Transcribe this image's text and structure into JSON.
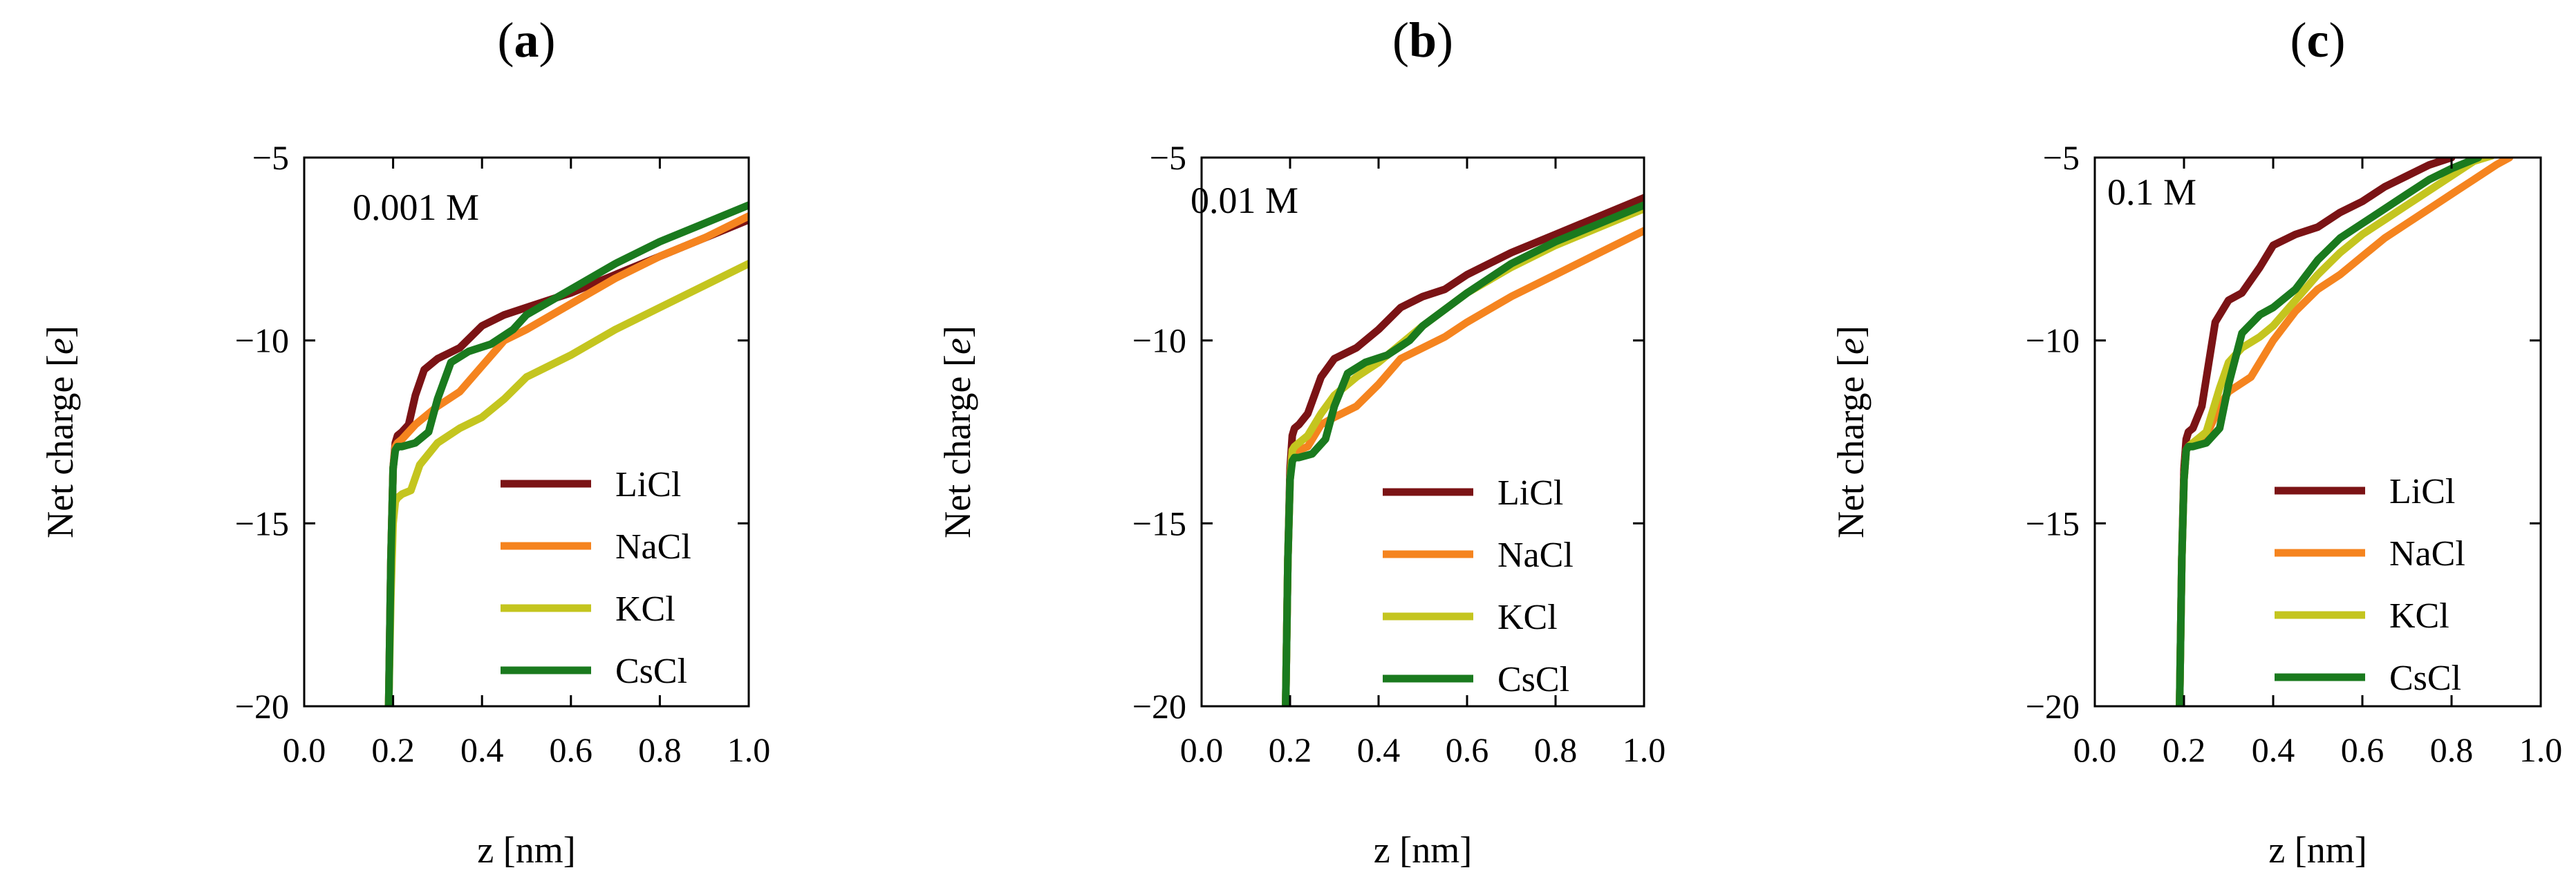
{
  "chart_data": [
    {
      "type": "line",
      "panel_label": "a",
      "annotation": "0.001 M",
      "xlabel": "z [nm]",
      "ylabel": "Net charge [",
      "ylabel_italic": "e",
      "ylabel_end": "]",
      "xlim": [
        0.0,
        1.0
      ],
      "ylim": [
        -20,
        -5
      ],
      "xticks": [
        0.0,
        0.2,
        0.4,
        0.6,
        0.8,
        1.0
      ],
      "xtick_labels": [
        "0.0",
        "0.2",
        "0.4",
        "0.6",
        "0.8",
        "1.0"
      ],
      "yticks": [
        -5,
        -10,
        -15,
        -20
      ],
      "ytick_labels": [
        "−5",
        "−10",
        "−15",
        "−20"
      ],
      "legend_position": "lower-right",
      "series": [
        {
          "name": "LiCl",
          "color": "#7b1315",
          "x": [
            0.19,
            0.195,
            0.2,
            0.205,
            0.21,
            0.22,
            0.235,
            0.25,
            0.27,
            0.3,
            0.35,
            0.4,
            0.45,
            0.5,
            0.6,
            0.7,
            0.8,
            0.9,
            1.0
          ],
          "y": [
            -20,
            -16,
            -13.5,
            -12.8,
            -12.6,
            -12.5,
            -12.3,
            -11.5,
            -10.8,
            -10.5,
            -10.2,
            -9.6,
            -9.3,
            -9.1,
            -8.7,
            -8.2,
            -7.7,
            -7.2,
            -6.7
          ]
        },
        {
          "name": "NaCl",
          "color": "#f5841f",
          "x": [
            0.19,
            0.195,
            0.2,
            0.205,
            0.21,
            0.22,
            0.25,
            0.3,
            0.35,
            0.4,
            0.45,
            0.5,
            0.6,
            0.7,
            0.8,
            0.9,
            1.0
          ],
          "y": [
            -20,
            -16,
            -13.5,
            -12.9,
            -12.8,
            -12.7,
            -12.3,
            -11.8,
            -11.4,
            -10.7,
            -10.0,
            -9.7,
            -9.0,
            -8.3,
            -7.7,
            -7.2,
            -6.6
          ]
        },
        {
          "name": "KCl",
          "color": "#c4c51f",
          "x": [
            0.19,
            0.195,
            0.2,
            0.205,
            0.21,
            0.22,
            0.24,
            0.26,
            0.3,
            0.35,
            0.4,
            0.45,
            0.5,
            0.55,
            0.6,
            0.7,
            0.8,
            0.9,
            1.0
          ],
          "y": [
            -20,
            -17,
            -15,
            -14.4,
            -14.3,
            -14.2,
            -14.1,
            -13.4,
            -12.8,
            -12.4,
            -12.1,
            -11.6,
            -11.0,
            -10.7,
            -10.4,
            -9.7,
            -9.1,
            -8.5,
            -7.9
          ]
        },
        {
          "name": "CsCl",
          "color": "#1a7a1e",
          "x": [
            0.19,
            0.195,
            0.2,
            0.205,
            0.21,
            0.22,
            0.25,
            0.28,
            0.3,
            0.33,
            0.37,
            0.42,
            0.47,
            0.5,
            0.6,
            0.7,
            0.8,
            0.9,
            1.0
          ],
          "y": [
            -20,
            -16,
            -13.5,
            -13.0,
            -12.9,
            -12.9,
            -12.8,
            -12.5,
            -11.6,
            -10.6,
            -10.3,
            -10.1,
            -9.7,
            -9.3,
            -8.6,
            -7.9,
            -7.3,
            -6.8,
            -6.3
          ]
        }
      ]
    },
    {
      "type": "line",
      "panel_label": "b",
      "annotation": "0.01 M",
      "xlabel": "z [nm]",
      "ylabel": "Net charge [",
      "ylabel_italic": "e",
      "ylabel_end": "]",
      "xlim": [
        0.0,
        1.0
      ],
      "ylim": [
        -20,
        -5
      ],
      "xticks": [
        0.0,
        0.2,
        0.4,
        0.6,
        0.8,
        1.0
      ],
      "xtick_labels": [
        "0.0",
        "0.2",
        "0.4",
        "0.6",
        "0.8",
        "1.0"
      ],
      "yticks": [
        -5,
        -10,
        -15,
        -20
      ],
      "ytick_labels": [
        "−5",
        "−10",
        "−15",
        "−20"
      ],
      "legend_position": "lower-right",
      "series": [
        {
          "name": "LiCl",
          "color": "#7b1315",
          "x": [
            0.19,
            0.195,
            0.2,
            0.205,
            0.21,
            0.22,
            0.24,
            0.27,
            0.3,
            0.35,
            0.4,
            0.45,
            0.5,
            0.55,
            0.6,
            0.7,
            0.8,
            0.9,
            1.0
          ],
          "y": [
            -20,
            -16,
            -13.5,
            -12.6,
            -12.4,
            -12.3,
            -12.0,
            -11.0,
            -10.5,
            -10.2,
            -9.7,
            -9.1,
            -8.8,
            -8.6,
            -8.2,
            -7.6,
            -7.1,
            -6.6,
            -6.1
          ]
        },
        {
          "name": "NaCl",
          "color": "#f5841f",
          "x": [
            0.19,
            0.195,
            0.2,
            0.205,
            0.21,
            0.22,
            0.24,
            0.27,
            0.3,
            0.35,
            0.4,
            0.45,
            0.5,
            0.55,
            0.6,
            0.7,
            0.8,
            0.9,
            1.0
          ],
          "y": [
            -20,
            -16,
            -13.8,
            -13.2,
            -13.1,
            -13.0,
            -12.9,
            -12.3,
            -12.1,
            -11.8,
            -11.2,
            -10.5,
            -10.2,
            -9.9,
            -9.5,
            -8.8,
            -8.2,
            -7.6,
            -7.0
          ]
        },
        {
          "name": "KCl",
          "color": "#c4c51f",
          "x": [
            0.19,
            0.195,
            0.2,
            0.205,
            0.21,
            0.22,
            0.24,
            0.27,
            0.3,
            0.35,
            0.4,
            0.45,
            0.5,
            0.6,
            0.7,
            0.8,
            0.9,
            1.0
          ],
          "y": [
            -20,
            -16,
            -13.8,
            -13.0,
            -12.9,
            -12.8,
            -12.6,
            -12.0,
            -11.5,
            -11.0,
            -10.6,
            -10.1,
            -9.6,
            -8.7,
            -8.0,
            -7.4,
            -6.9,
            -6.4
          ]
        },
        {
          "name": "CsCl",
          "color": "#1a7a1e",
          "x": [
            0.19,
            0.195,
            0.2,
            0.205,
            0.21,
            0.22,
            0.25,
            0.28,
            0.3,
            0.33,
            0.37,
            0.42,
            0.47,
            0.5,
            0.6,
            0.7,
            0.8,
            0.9,
            1.0
          ],
          "y": [
            -20,
            -16,
            -13.8,
            -13.3,
            -13.2,
            -13.2,
            -13.1,
            -12.7,
            -11.8,
            -10.9,
            -10.6,
            -10.4,
            -10.0,
            -9.6,
            -8.7,
            -7.9,
            -7.3,
            -6.8,
            -6.3
          ]
        }
      ]
    },
    {
      "type": "line",
      "panel_label": "c",
      "annotation": "0.1 M",
      "xlabel": "z [nm]",
      "ylabel": "Net charge [",
      "ylabel_italic": "e",
      "ylabel_end": "]",
      "xlim": [
        0.0,
        1.0
      ],
      "ylim": [
        -20,
        -5
      ],
      "xticks": [
        0.0,
        0.2,
        0.4,
        0.6,
        0.8,
        1.0
      ],
      "xtick_labels": [
        "0.0",
        "0.2",
        "0.4",
        "0.6",
        "0.8",
        "1.0"
      ],
      "yticks": [
        -5,
        -10,
        -15,
        -20
      ],
      "ytick_labels": [
        "−5",
        "−10",
        "−15",
        "−20"
      ],
      "legend_position": "lower-right",
      "series": [
        {
          "name": "LiCl",
          "color": "#7b1315",
          "x": [
            0.19,
            0.195,
            0.2,
            0.205,
            0.21,
            0.22,
            0.24,
            0.27,
            0.3,
            0.33,
            0.37,
            0.4,
            0.45,
            0.5,
            0.55,
            0.6,
            0.65,
            0.7,
            0.75,
            0.8
          ],
          "y": [
            -20,
            -16,
            -13.5,
            -12.7,
            -12.5,
            -12.4,
            -11.8,
            -9.5,
            -8.9,
            -8.7,
            -8.0,
            -7.4,
            -7.1,
            -6.9,
            -6.5,
            -6.2,
            -5.8,
            -5.5,
            -5.2,
            -5.0
          ]
        },
        {
          "name": "NaCl",
          "color": "#f5841f",
          "x": [
            0.19,
            0.195,
            0.2,
            0.205,
            0.21,
            0.22,
            0.25,
            0.28,
            0.3,
            0.35,
            0.4,
            0.45,
            0.5,
            0.55,
            0.6,
            0.65,
            0.7,
            0.75,
            0.8,
            0.85,
            0.9,
            0.93
          ],
          "y": [
            -20,
            -16,
            -13.8,
            -13.0,
            -12.9,
            -12.8,
            -12.6,
            -11.8,
            -11.4,
            -11.0,
            -10.0,
            -9.2,
            -8.6,
            -8.2,
            -7.7,
            -7.2,
            -6.8,
            -6.4,
            -6.0,
            -5.6,
            -5.2,
            -5.0
          ]
        },
        {
          "name": "KCl",
          "color": "#c4c51f",
          "x": [
            0.19,
            0.195,
            0.2,
            0.205,
            0.21,
            0.22,
            0.25,
            0.28,
            0.3,
            0.33,
            0.37,
            0.4,
            0.45,
            0.5,
            0.55,
            0.6,
            0.65,
            0.7,
            0.75,
            0.8,
            0.85,
            0.89
          ],
          "y": [
            -20,
            -16,
            -13.8,
            -13.0,
            -12.9,
            -12.8,
            -12.5,
            -11.3,
            -10.6,
            -10.2,
            -9.9,
            -9.6,
            -8.9,
            -8.2,
            -7.6,
            -7.1,
            -6.7,
            -6.3,
            -5.9,
            -5.5,
            -5.1,
            -4.95
          ]
        },
        {
          "name": "CsCl",
          "color": "#1a7a1e",
          "x": [
            0.19,
            0.195,
            0.2,
            0.205,
            0.21,
            0.22,
            0.25,
            0.28,
            0.3,
            0.33,
            0.37,
            0.4,
            0.45,
            0.5,
            0.55,
            0.6,
            0.65,
            0.7,
            0.75,
            0.8,
            0.86
          ],
          "y": [
            -20,
            -16,
            -13.8,
            -13.0,
            -12.9,
            -12.9,
            -12.8,
            -12.4,
            -11.2,
            -9.8,
            -9.3,
            -9.1,
            -8.6,
            -7.8,
            -7.2,
            -6.8,
            -6.4,
            -6.0,
            -5.6,
            -5.3,
            -5.0
          ]
        }
      ]
    }
  ]
}
